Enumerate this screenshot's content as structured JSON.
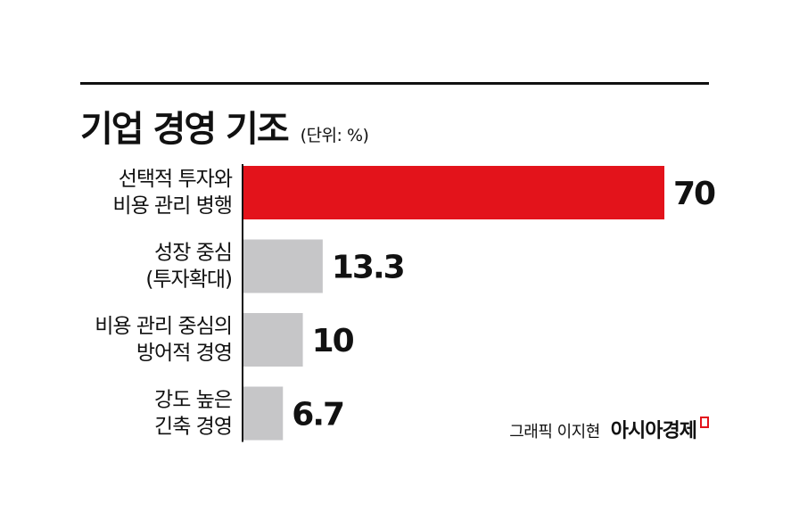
{
  "header": {
    "title": "기업 경영 기조",
    "unit": "(단위: %)"
  },
  "colors": {
    "highlight": "#e3131b",
    "bar": "#c6c6c8",
    "text": "#111111",
    "axis": "#111111"
  },
  "chart_data": {
    "type": "bar",
    "orientation": "horizontal",
    "title": "기업 경영 기조",
    "unit": "(단위: %)",
    "categories": [
      [
        "선택적 투자와",
        "비용 관리 병행"
      ],
      [
        "성장 중심",
        "(투자확대)"
      ],
      [
        "비용 관리 중심의",
        "방어적 경영"
      ],
      [
        "강도 높은",
        "긴축 경영"
      ]
    ],
    "values": [
      70,
      13.3,
      10,
      6.7
    ],
    "value_labels": [
      "70",
      "13.3",
      "10",
      "6.7"
    ],
    "highlight_index": 0,
    "xlim": [
      0,
      70
    ],
    "grid": false,
    "legend": "none"
  },
  "footer": {
    "credit": "그래픽 이지현",
    "publisher": "아시아경제"
  }
}
